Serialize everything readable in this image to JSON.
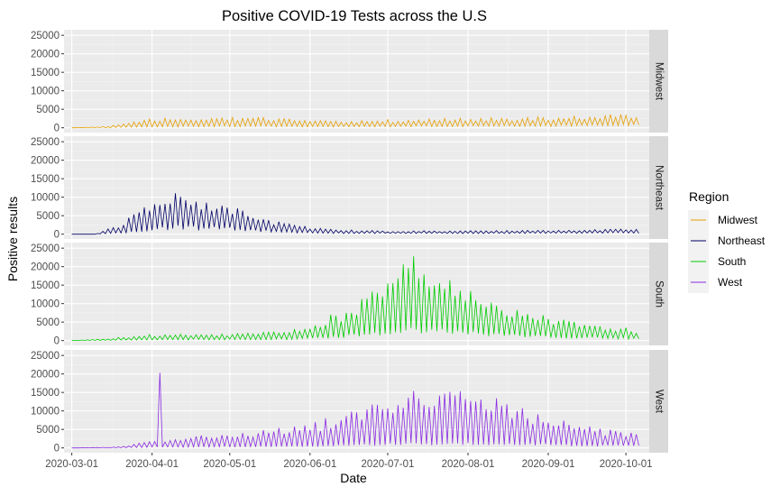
{
  "chart_data": {
    "type": "line",
    "title": "Positive COVID-19 Tests across the U.S",
    "xlabel": "Date",
    "ylabel": "Positive results",
    "x_ticks": [
      "2020-03-01",
      "2020-04-01",
      "2020-05-01",
      "2020-06-01",
      "2020-07-01",
      "2020-08-01",
      "2020-09-01",
      "2020-10-01"
    ],
    "x_range": [
      "2020-02-27",
      "2020-10-10"
    ],
    "y_ticks": [
      0,
      5000,
      10000,
      15000,
      20000,
      25000
    ],
    "ylim": [
      -1300,
      26500
    ],
    "facets": [
      "Midwest",
      "Northeast",
      "South",
      "West"
    ],
    "legend": {
      "title": "Region",
      "placement": "right",
      "entries": [
        "Midwest",
        "Northeast",
        "South",
        "West"
      ]
    },
    "grid": true,
    "colors": {
      "Midwest": "#E69F00",
      "Northeast": "#000066",
      "South": "#00CC00",
      "West": "#8A2BE2",
      "panel_background": "#EBEBEB",
      "grid_line": "#FFFFFF",
      "strip_background": "#D9D9D9"
    },
    "series": [
      {
        "name": "Midwest",
        "x": [
          "2020-03-01",
          "2020-03-15",
          "2020-04-01",
          "2020-04-15",
          "2020-05-01",
          "2020-05-15",
          "2020-06-01",
          "2020-06-15",
          "2020-07-01",
          "2020-07-15",
          "2020-08-01",
          "2020-08-15",
          "2020-09-01",
          "2020-09-15",
          "2020-10-01",
          "2020-10-06"
        ],
        "peak": [
          0,
          400,
          2500,
          2800,
          3000,
          2900,
          2000,
          1800,
          2200,
          2500,
          2700,
          2800,
          3000,
          3200,
          3900,
          3800
        ],
        "base": [
          0,
          50,
          300,
          500,
          600,
          550,
          400,
          350,
          450,
          550,
          600,
          650,
          700,
          800,
          1000,
          950
        ]
      },
      {
        "name": "Northeast",
        "x": [
          "2020-03-01",
          "2020-03-10",
          "2020-03-20",
          "2020-04-01",
          "2020-04-10",
          "2020-04-20",
          "2020-05-01",
          "2020-05-10",
          "2020-05-20",
          "2020-06-01",
          "2020-06-15",
          "2020-07-01",
          "2020-08-01",
          "2020-09-01",
          "2020-10-01",
          "2020-10-06"
        ],
        "peak": [
          0,
          0,
          3000,
          9000,
          12000,
          10000,
          8500,
          5000,
          3500,
          2000,
          1200,
          900,
          1000,
          1100,
          1400,
          1300
        ],
        "base": [
          0,
          0,
          500,
          1500,
          2500,
          2000,
          2000,
          1500,
          800,
          500,
          300,
          300,
          300,
          350,
          450,
          400
        ]
      },
      {
        "name": "South",
        "x": [
          "2020-03-01",
          "2020-03-15",
          "2020-04-01",
          "2020-05-01",
          "2020-05-20",
          "2020-06-01",
          "2020-06-15",
          "2020-07-01",
          "2020-07-10",
          "2020-07-20",
          "2020-08-01",
          "2020-08-15",
          "2020-09-01",
          "2020-09-15",
          "2020-10-01",
          "2020-10-06"
        ],
        "peak": [
          0,
          600,
          1700,
          1900,
          2800,
          4500,
          9000,
          17000,
          24000,
          20000,
          15000,
          10000,
          6500,
          4500,
          3500,
          2800
        ],
        "base": [
          0,
          100,
          300,
          400,
          500,
          800,
          1500,
          2500,
          3500,
          3200,
          2500,
          1800,
          1200,
          900,
          800,
          700
        ]
      },
      {
        "name": "West",
        "x": [
          "2020-03-01",
          "2020-03-20",
          "2020-04-01",
          "2020-04-15",
          "2020-05-01",
          "2020-05-15",
          "2020-06-01",
          "2020-06-15",
          "2020-07-01",
          "2020-07-15",
          "2020-08-01",
          "2020-08-15",
          "2020-09-01",
          "2020-09-15",
          "2020-10-01",
          "2020-10-06"
        ],
        "peak": [
          0,
          300,
          2000,
          3500,
          4500,
          5000,
          6500,
          11000,
          15000,
          17000,
          15000,
          13000,
          9000,
          6000,
          4500,
          4000
        ],
        "base": [
          0,
          50,
          250,
          350,
          400,
          450,
          550,
          800,
          1200,
          1400,
          1300,
          1200,
          1000,
          800,
          700,
          650
        ]
      }
    ],
    "spikes": [
      {
        "series": "West",
        "x": "2020-04-04",
        "y": 20300
      }
    ]
  }
}
